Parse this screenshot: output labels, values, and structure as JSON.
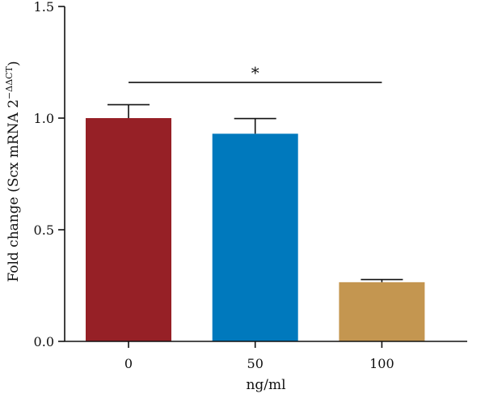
{
  "chart_data": {
    "type": "bar",
    "title": "",
    "xlabel": "ng/ml",
    "ylabel": "Fold change (Scx mRNA 2",
    "ylabel_superscript": "−ΔΔCT",
    "ylabel_close": ")",
    "categories": [
      "0",
      "50",
      "100"
    ],
    "values": [
      1.0,
      0.93,
      0.265
    ],
    "errors": [
      0.06,
      0.068,
      0.012
    ],
    "colors": [
      "#962026",
      "#0079bd",
      "#c49650"
    ],
    "ylim": [
      0,
      1.5
    ],
    "yticks": [
      0.0,
      0.5,
      1.0,
      1.5
    ],
    "ytick_labels": [
      "0.0",
      "0.5",
      "1.0",
      "1.5"
    ],
    "grid": false,
    "legend": "none",
    "significance": {
      "from": "0",
      "to": "100",
      "label": "*",
      "y": 1.16
    }
  }
}
